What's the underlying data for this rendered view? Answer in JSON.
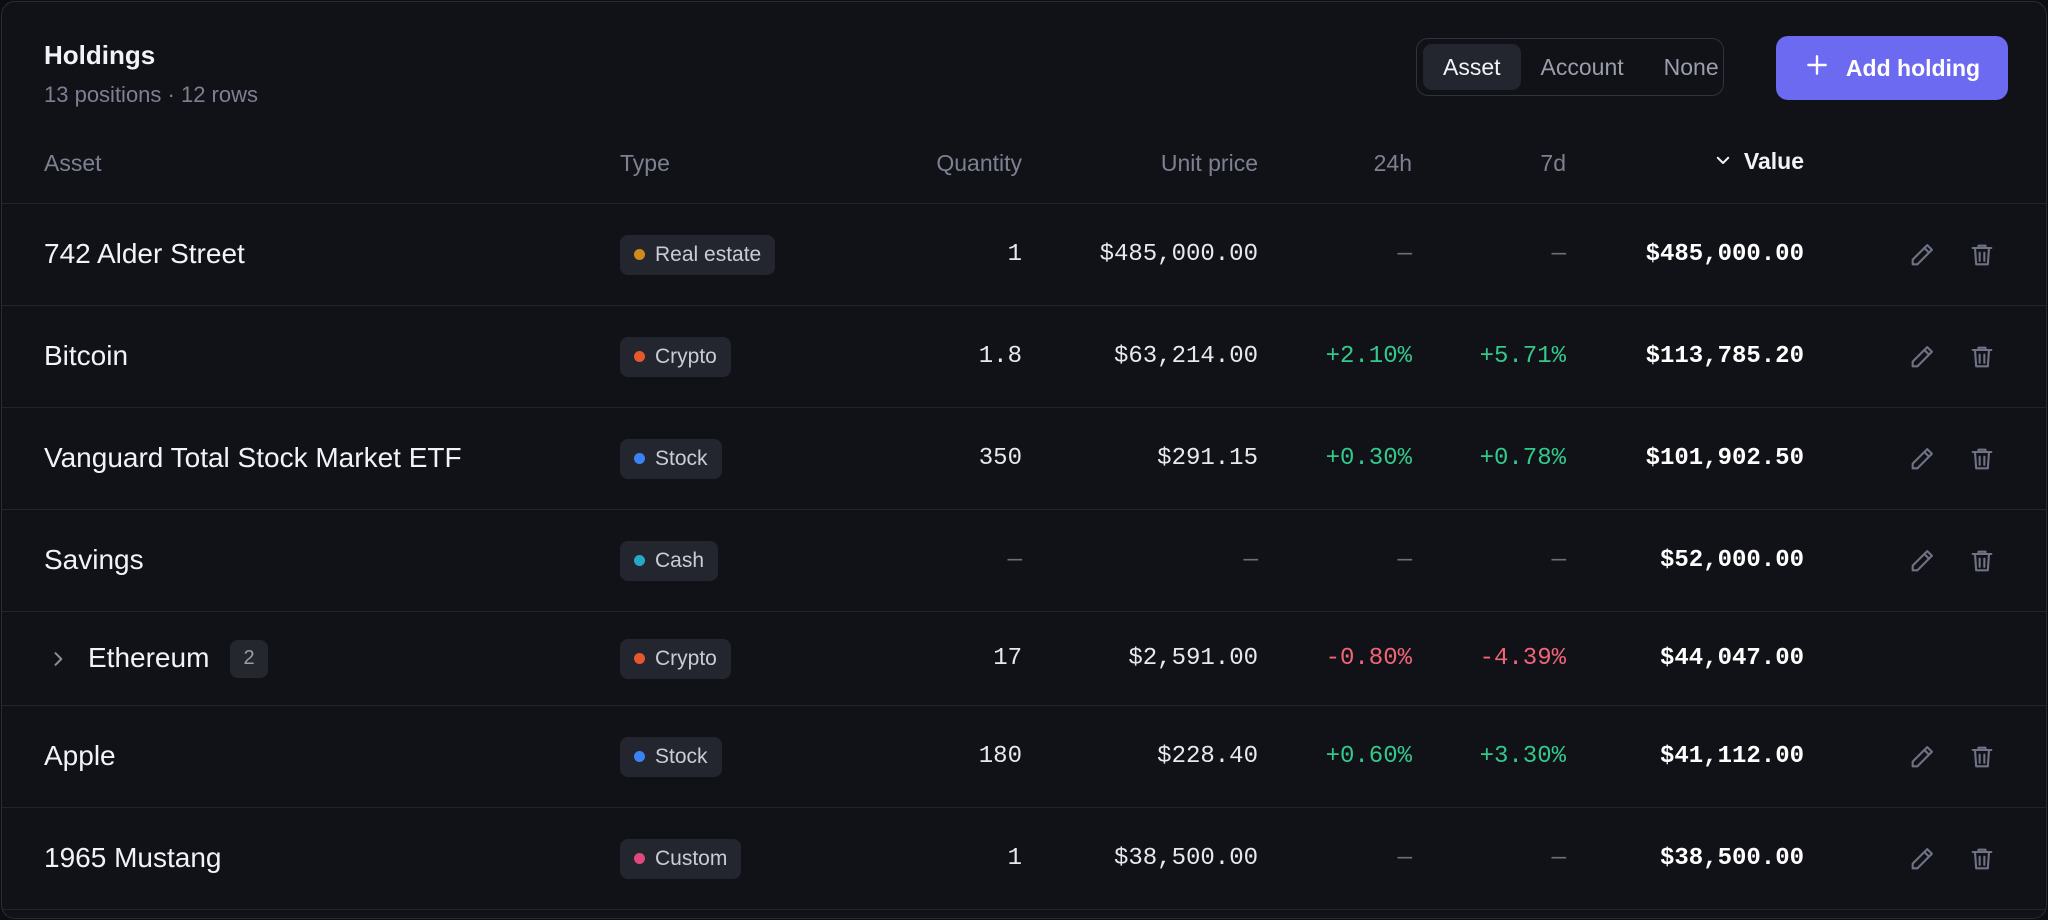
{
  "header": {
    "title": "Holdings",
    "subtitle": "13 positions · 12 rows",
    "group_by": [
      "Asset",
      "Account",
      "None"
    ],
    "group_by_selected": "Asset",
    "add_label": "Add holding"
  },
  "columns": {
    "asset": "Asset",
    "type": "Type",
    "quantity": "Quantity",
    "unit_price": "Unit price",
    "d24h": "24h",
    "d7d": "7d",
    "value": "Value",
    "value_sort": "descending"
  },
  "colors": {
    "accent": "#6c6af0",
    "positive": "#34c98a",
    "negative": "#f06577",
    "real_estate": "#d08a1c",
    "crypto": "#e5582d",
    "stock": "#3b82f6",
    "cash": "#27a8c7",
    "custom": "#e0487e"
  },
  "rows": [
    {
      "name": "742 Alder Street",
      "type": "Real estate",
      "type_color": "#d08a1c",
      "quantity": "1",
      "unit_price": "$485,000.00",
      "d24h": "—",
      "d7d": "—",
      "d24h_dir": "none",
      "d7d_dir": "none",
      "value": "$485,000.00",
      "actions": true
    },
    {
      "name": "Bitcoin",
      "type": "Crypto",
      "type_color": "#e5582d",
      "quantity": "1.8",
      "unit_price": "$63,214.00",
      "d24h": "+2.10%",
      "d7d": "+5.71%",
      "d24h_dir": "pos",
      "d7d_dir": "pos",
      "value": "$113,785.20",
      "actions": true
    },
    {
      "name": "Vanguard Total Stock Market ETF",
      "type": "Stock",
      "type_color": "#3b82f6",
      "quantity": "350",
      "unit_price": "$291.15",
      "d24h": "+0.30%",
      "d7d": "+0.78%",
      "d24h_dir": "pos",
      "d7d_dir": "pos",
      "value": "$101,902.50",
      "actions": true
    },
    {
      "name": "Savings",
      "type": "Cash",
      "type_color": "#27a8c7",
      "quantity": "—",
      "unit_price": "—",
      "d24h": "—",
      "d7d": "—",
      "d24h_dir": "none",
      "d7d_dir": "none",
      "value": "$52,000.00",
      "actions": true
    },
    {
      "name": "Ethereum",
      "group_count": "2",
      "expandable": true,
      "type": "Crypto",
      "type_color": "#e5582d",
      "quantity": "17",
      "unit_price": "$2,591.00",
      "d24h": "-0.80%",
      "d7d": "-4.39%",
      "d24h_dir": "neg",
      "d7d_dir": "neg",
      "value": "$44,047.00",
      "actions": false
    },
    {
      "name": "Apple",
      "type": "Stock",
      "type_color": "#3b82f6",
      "quantity": "180",
      "unit_price": "$228.40",
      "d24h": "+0.60%",
      "d7d": "+3.30%",
      "d24h_dir": "pos",
      "d7d_dir": "pos",
      "value": "$41,112.00",
      "actions": true
    },
    {
      "name": "1965 Mustang",
      "type": "Custom",
      "type_color": "#e0487e",
      "quantity": "1",
      "unit_price": "$38,500.00",
      "d24h": "—",
      "d7d": "—",
      "d24h_dir": "none",
      "d7d_dir": "none",
      "value": "$38,500.00",
      "actions": true
    }
  ]
}
